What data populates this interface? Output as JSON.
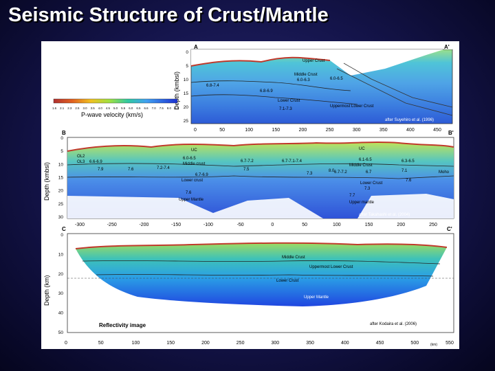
{
  "slide": {
    "title": "Seismic Structure of Crust/Mantle"
  },
  "panel_a": {
    "label_left": "A",
    "label_right": "A'",
    "ylabel": "Depth (kmbsl)",
    "yticks": [
      "0",
      "5",
      "10",
      "15",
      "20",
      "25"
    ],
    "layer_labels": [
      "Upper Crust",
      "Middle Crust",
      "6.0-6.3",
      "6.8-7.4",
      "6.8-6.9",
      "6.0-6.5",
      "Lower Crust",
      "Uppermost Lower Crust",
      "7.1-7.3"
    ],
    "credit": "after Suyehiro et al. (1996)"
  },
  "colorbar": {
    "ticks": [
      "1.6",
      "2.1",
      "2.3",
      "2.5",
      "3.0",
      "3.5",
      "4.0",
      "4.5",
      "5.0",
      "5.5",
      "6.0",
      "6.5",
      "6.6",
      "7.0",
      "7.5",
      "8.0",
      "8.5"
    ],
    "label": "P-wave velocity (km/s)"
  },
  "panel_b": {
    "label_left": "B",
    "label_right": "B'",
    "ylabel": "Depth (kmbsl)",
    "yticks": [
      "0",
      "5",
      "10",
      "15",
      "20",
      "25",
      "30"
    ],
    "xticks": [
      "-300",
      "-250",
      "-200",
      "-150",
      "-100",
      "-50",
      "0",
      "50",
      "100",
      "150",
      "200",
      "250"
    ],
    "layer_labels": [
      "UC",
      "UC",
      "OL3",
      "OL2",
      "6.6-6.9",
      "6.0-6.5",
      "Middle crust",
      "7.2-7.4",
      "6.7-6.9",
      "Lower crust",
      "7.6",
      "Upper Mantle",
      "6.7-7.2",
      "6.7-7.1-7.4",
      "7.3",
      "8.0",
      "6.1-6.5",
      "Middle Crust",
      "6.7-7.2",
      "6.7",
      "Lower Crust",
      "7.3",
      "7.7",
      "Upper mantle",
      "6.3-6.5",
      "7.1",
      "Moho",
      "7.5",
      "7.9",
      "7.6",
      "7.6"
    ],
    "credit": "after Takahashi et al. (2004)"
  },
  "panel_c": {
    "label_left": "C",
    "label_right": "C'",
    "ylabel": "Depth (km)",
    "yticks": [
      "0",
      "10",
      "20",
      "30",
      "40",
      "50"
    ],
    "xticks": [
      "0",
      "50",
      "100",
      "150",
      "200",
      "250",
      "300",
      "350",
      "400",
      "450",
      "500",
      "550"
    ],
    "x_unit": "(km)",
    "layer_labels": [
      "Middle Crust",
      "Uppermost Lower Crust",
      "Lower Crust",
      "Upper Mantle"
    ],
    "image_label": "Reflectivity image",
    "credit": "after Kodaira et al. (2006)"
  },
  "top_axis_ticks": [
    "0",
    "50",
    "100",
    "150",
    "200",
    "250",
    "300",
    "350",
    "400",
    "450"
  ]
}
